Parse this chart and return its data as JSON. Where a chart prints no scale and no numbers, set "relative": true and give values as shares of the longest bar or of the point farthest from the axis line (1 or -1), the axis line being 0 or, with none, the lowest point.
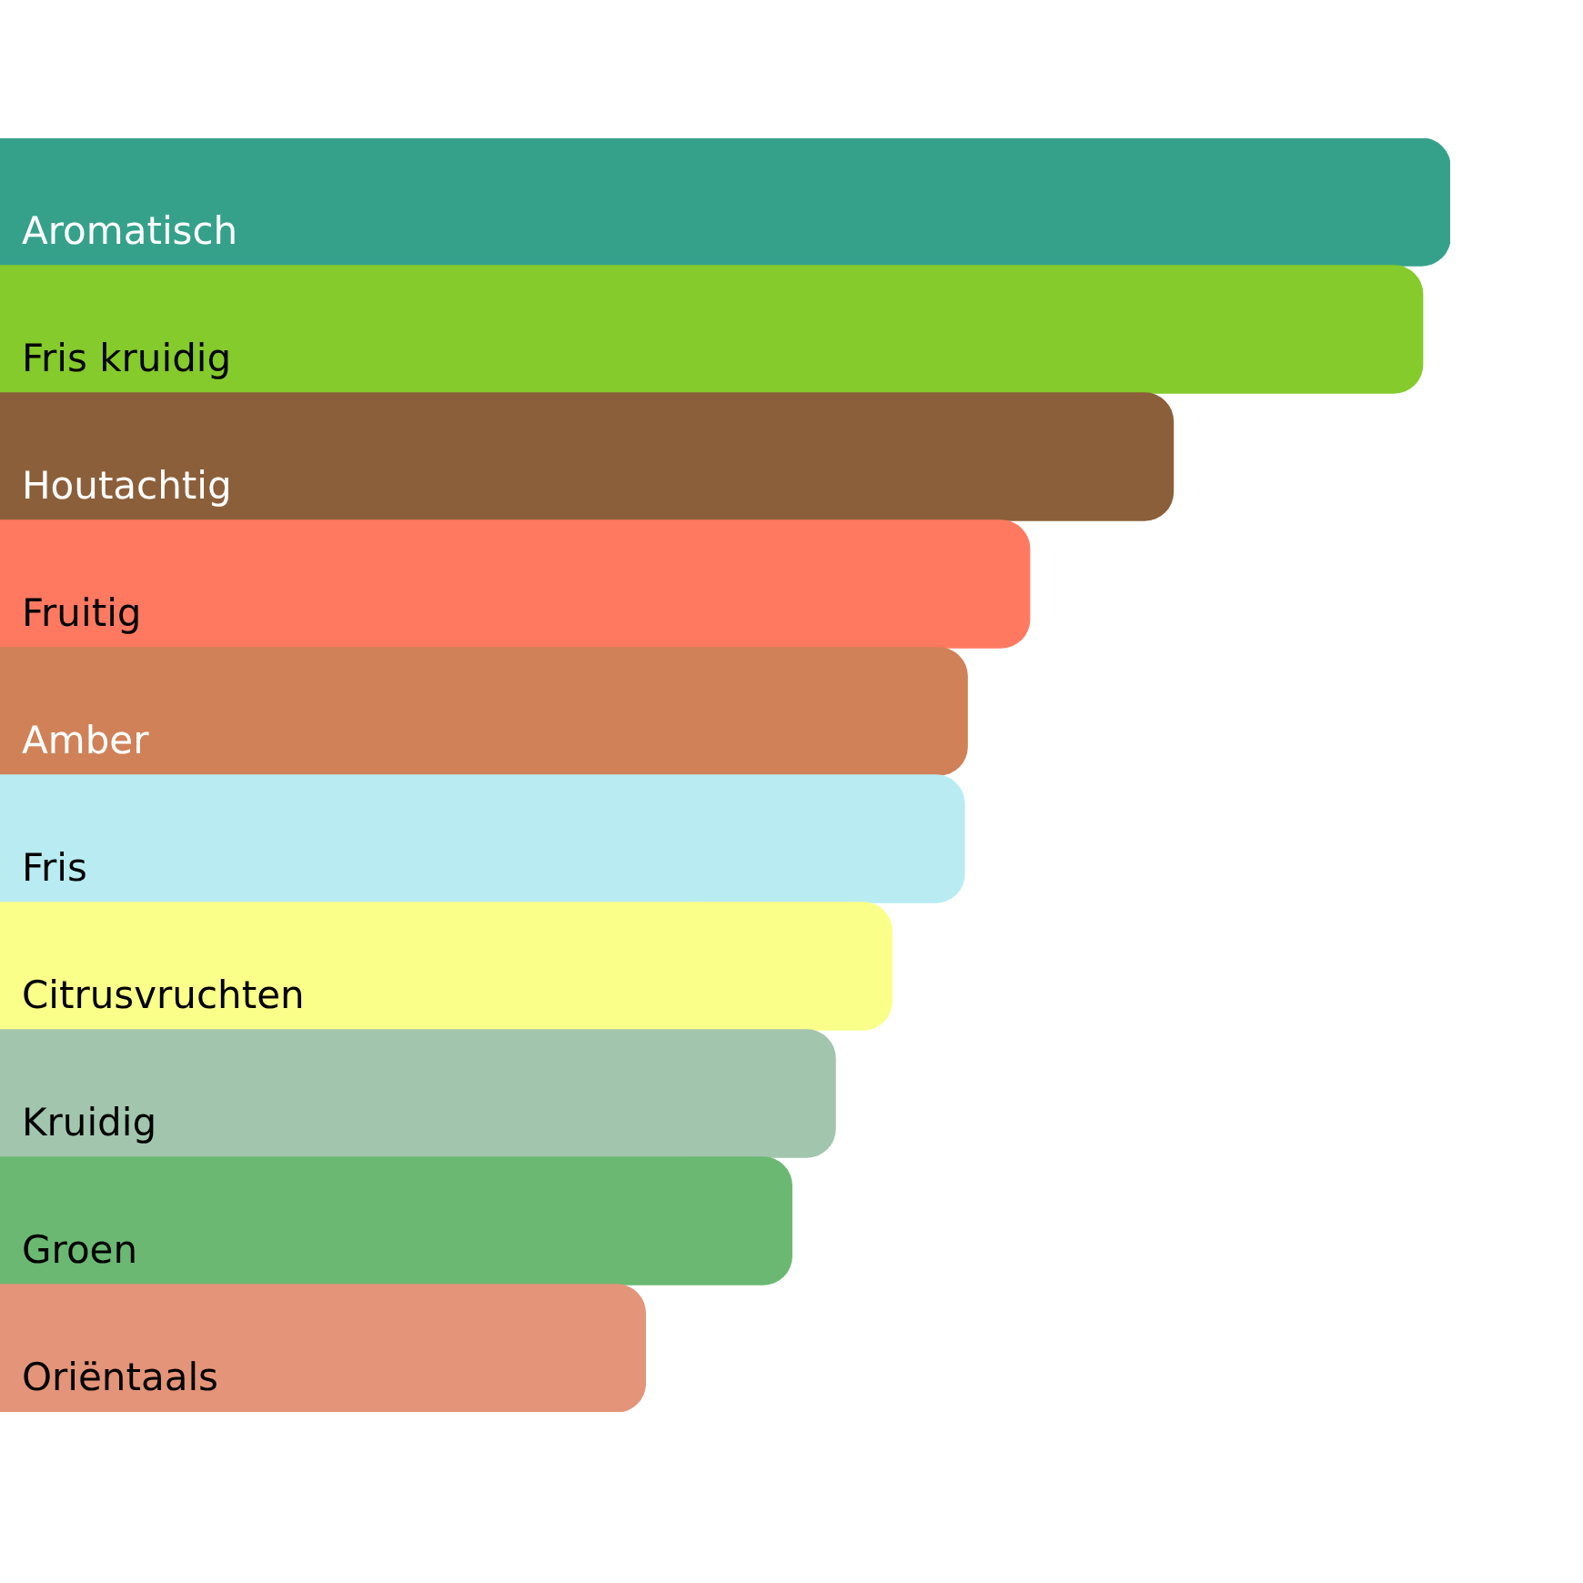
{
  "chart_data": {
    "type": "bar",
    "orientation": "horizontal",
    "relative": true,
    "categories": [
      "Aromatisch",
      "Fris kruidig",
      "Houtachtig",
      "Fruitig",
      "Amber",
      "Fris",
      "Citrusvruchten",
      "Kruidig",
      "Groen",
      "Oriëntaals"
    ],
    "values": [
      1,
      0.981,
      0.809,
      0.71,
      0.667,
      0.665,
      0.615,
      0.576,
      0.546,
      0.445
    ],
    "colors": [
      "#36a18b",
      "#84cb2b",
      "#8b5f3a",
      "#ff7961",
      "#d08157",
      "#b9ecf2",
      "#faff8a",
      "#a2c5ae",
      "#6bb872",
      "#e39479"
    ],
    "legend": false
  }
}
